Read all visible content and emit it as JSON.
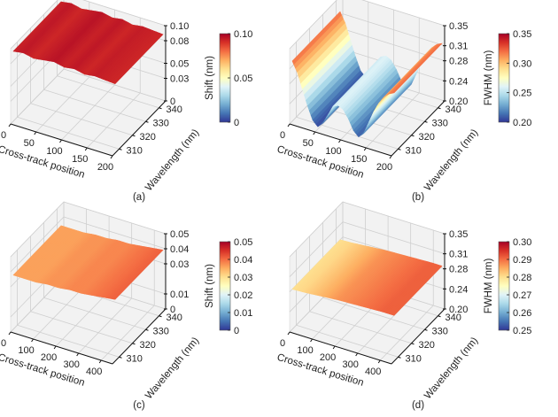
{
  "figure": {
    "colormap": [
      "#313695",
      "#4575b4",
      "#74add1",
      "#abd9e9",
      "#e0f3f8",
      "#ffffbf",
      "#fee090",
      "#fdae61",
      "#f46d43",
      "#d73027",
      "#a50026"
    ]
  },
  "chart_data": [
    {
      "id": "a",
      "type": "surface3d",
      "panel_label": "(a)",
      "xlabel": "Cross-track position",
      "ylabel": "Wavelength (nm)",
      "zlabel": "",
      "colorbar_label": "Shift (nm)",
      "x_ticks": [
        "0",
        "50",
        "100",
        "150",
        "200"
      ],
      "y_ticks": [
        "310",
        "320",
        "330",
        "340"
      ],
      "z_ticks": [
        "0",
        "0.03",
        "0.05",
        "0.08",
        "0.10"
      ],
      "colorbar_ticks": [
        "0",
        "0.05",
        "0.10"
      ],
      "xlim": [
        0,
        200
      ],
      "ylim": [
        305,
        345
      ],
      "zlim": [
        0,
        0.1
      ],
      "clim": [
        0,
        0.1
      ],
      "grid": true,
      "surface_profile": {
        "x": [
          0,
          20,
          40,
          60,
          80,
          100,
          120,
          140,
          160,
          180,
          200
        ],
        "z": [
          0.093,
          0.095,
          0.092,
          0.094,
          0.096,
          0.093,
          0.095,
          0.092,
          0.094,
          0.093,
          0.092
        ]
      }
    },
    {
      "id": "b",
      "type": "surface3d",
      "panel_label": "(b)",
      "xlabel": "Cross-track position",
      "ylabel": "Wavelength (nm)",
      "zlabel": "",
      "colorbar_label": "FWHM (nm)",
      "x_ticks": [
        "0",
        "50",
        "100",
        "150",
        "200"
      ],
      "y_ticks": [
        "310",
        "320",
        "330",
        "340"
      ],
      "z_ticks": [
        "0.20",
        "0.24",
        "0.28",
        "0.31",
        "0.35"
      ],
      "colorbar_ticks": [
        "0.20",
        "0.25",
        "0.30",
        "0.35"
      ],
      "xlim": [
        0,
        200
      ],
      "ylim": [
        305,
        345
      ],
      "zlim": [
        0.2,
        0.35
      ],
      "clim": [
        0.2,
        0.35
      ],
      "grid": true,
      "surface_profile": {
        "x": [
          0,
          10,
          20,
          30,
          40,
          50,
          60,
          70,
          80,
          90,
          100,
          110,
          120,
          130,
          140,
          150,
          160,
          170,
          180,
          190,
          200
        ],
        "z": [
          0.32,
          0.3,
          0.27,
          0.24,
          0.215,
          0.205,
          0.215,
          0.235,
          0.255,
          0.26,
          0.255,
          0.24,
          0.22,
          0.21,
          0.22,
          0.245,
          0.27,
          0.29,
          0.305,
          0.315,
          0.32
        ]
      }
    },
    {
      "id": "c",
      "type": "surface3d",
      "panel_label": "(c)",
      "xlabel": "Cross-track position",
      "ylabel": "Wavelength (nm)",
      "zlabel": "",
      "colorbar_label": "Shift (nm)",
      "x_ticks": [
        "0",
        "100",
        "200",
        "300",
        "400"
      ],
      "y_ticks": [
        "310",
        "320",
        "330",
        "340"
      ],
      "z_ticks": [
        "0",
        "0.01",
        "0.03",
        "0.04",
        "0.05"
      ],
      "colorbar_ticks": [
        "0",
        "0.01",
        "0.02",
        "0.03",
        "0.04",
        "0.05"
      ],
      "xlim": [
        0,
        450
      ],
      "ylim": [
        305,
        345
      ],
      "zlim": [
        0,
        0.05
      ],
      "clim": [
        0,
        0.05
      ],
      "grid": true,
      "surface_profile": {
        "x": [
          0,
          50,
          100,
          150,
          200,
          250,
          300,
          350,
          400,
          450
        ],
        "z": [
          0.036,
          0.036,
          0.036,
          0.037,
          0.037,
          0.038,
          0.038,
          0.039,
          0.04,
          0.041
        ]
      }
    },
    {
      "id": "d",
      "type": "surface3d",
      "panel_label": "(d)",
      "xlabel": "Cross-track position",
      "ylabel": "Wavelength (nm)",
      "zlabel": "",
      "colorbar_label": "FWHM (nm)",
      "x_ticks": [
        "0",
        "100",
        "200",
        "300",
        "400"
      ],
      "y_ticks": [
        "310",
        "320",
        "330",
        "340"
      ],
      "z_ticks": [
        "0.20",
        "0.24",
        "0.28",
        "0.31",
        "0.35"
      ],
      "colorbar_ticks": [
        "0.25",
        "0.26",
        "0.27",
        "0.28",
        "0.29",
        "0.30"
      ],
      "xlim": [
        0,
        450
      ],
      "ylim": [
        305,
        345
      ],
      "zlim": [
        0.2,
        0.35
      ],
      "clim": [
        0.25,
        0.3
      ],
      "grid": true,
      "surface_profile": {
        "x": [
          0,
          50,
          100,
          150,
          200,
          250,
          300,
          350,
          400,
          450
        ],
        "z": [
          0.28,
          0.281,
          0.283,
          0.285,
          0.287,
          0.288,
          0.289,
          0.29,
          0.291,
          0.291
        ]
      }
    }
  ]
}
